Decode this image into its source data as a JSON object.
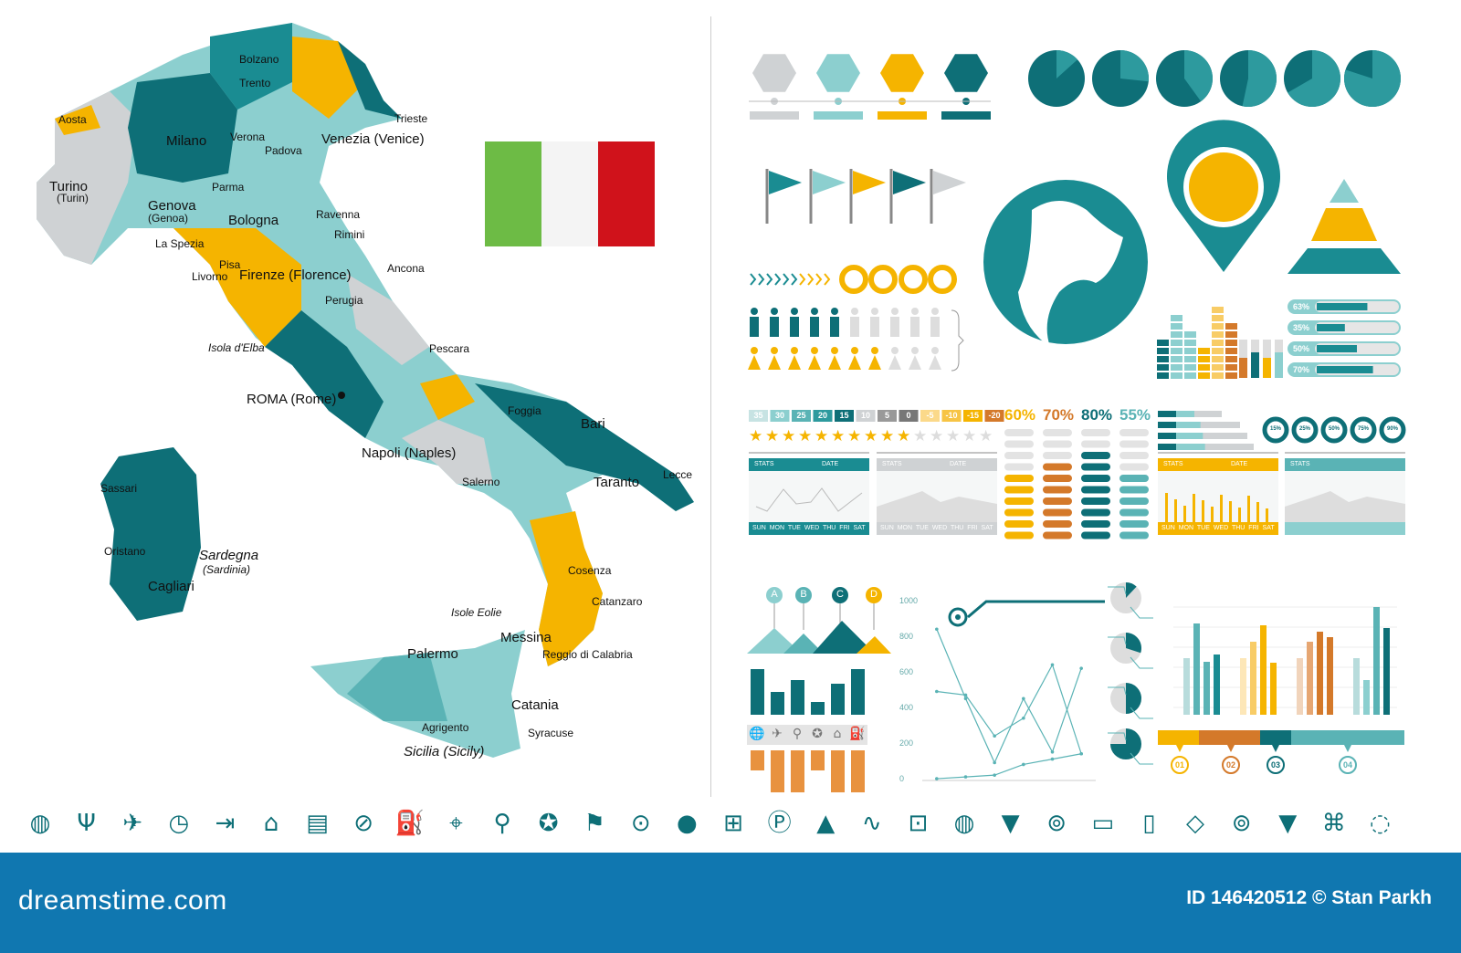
{
  "colors": {
    "teal": "#1a8c92",
    "dark_teal": "#0e6f77",
    "light_teal": "#8ccfcf",
    "pale_teal": "#b8dcdc",
    "yellow": "#f5b400",
    "orange": "#d4792a",
    "gray": "#cfd2d4",
    "footer": "#1077b0"
  },
  "map": {
    "cities": [
      {
        "name": "Aosta",
        "big": false
      },
      {
        "name": "Bolzano",
        "big": false
      },
      {
        "name": "Trento",
        "big": false
      },
      {
        "name": "Trieste",
        "big": false
      },
      {
        "name": "Milano",
        "big": true
      },
      {
        "name": "Verona",
        "big": false
      },
      {
        "name": "Padova",
        "big": false
      },
      {
        "name": "Venezia (Venice)",
        "big": true
      },
      {
        "name": "Turino",
        "big": true
      },
      {
        "name": "(Turin)",
        "big": false
      },
      {
        "name": "Genova",
        "big": true
      },
      {
        "name": "(Genoa)",
        "big": false
      },
      {
        "name": "Bologna",
        "big": true
      },
      {
        "name": "Parma",
        "big": false
      },
      {
        "name": "Ravenna",
        "big": false
      },
      {
        "name": "Rimini",
        "big": false
      },
      {
        "name": "La Spezia",
        "big": false
      },
      {
        "name": "Livorno",
        "big": false
      },
      {
        "name": "Pisa",
        "big": false
      },
      {
        "name": "Firenze (Florence)",
        "big": true
      },
      {
        "name": "Ancona",
        "big": false
      },
      {
        "name": "Perugia",
        "big": false
      },
      {
        "name": "Pescara",
        "big": false
      },
      {
        "name": "ROMA (Rome)",
        "big": true
      },
      {
        "name": "Foggia",
        "big": false
      },
      {
        "name": "Bari",
        "big": true
      },
      {
        "name": "Napoli (Naples)",
        "big": true
      },
      {
        "name": "Salerno",
        "big": false
      },
      {
        "name": "Taranto",
        "big": true
      },
      {
        "name": "Lecce",
        "big": false
      },
      {
        "name": "Cosenza",
        "big": false
      },
      {
        "name": "Catanzaro",
        "big": false
      },
      {
        "name": "Reggio di Calabria",
        "big": false
      },
      {
        "name": "Messina",
        "big": true
      },
      {
        "name": "Palermo",
        "big": true
      },
      {
        "name": "Catania",
        "big": true
      },
      {
        "name": "Agrigento",
        "big": false
      },
      {
        "name": "Syracuse",
        "big": false
      },
      {
        "name": "Sicilia (Sicily)",
        "big": true
      },
      {
        "name": "Isole Eolie",
        "big": false
      },
      {
        "name": "Sassari",
        "big": false
      },
      {
        "name": "Oristano",
        "big": false
      },
      {
        "name": "Cagliari",
        "big": true
      },
      {
        "name": "Sardegna",
        "big": true
      },
      {
        "name": "(Sardinia)",
        "big": false
      },
      {
        "name": "Isola d'Elba",
        "big": false
      }
    ],
    "flag": {
      "colors": [
        "#6dbb45",
        "#f4f4f4",
        "#d0121b"
      ]
    }
  },
  "infographic": {
    "scale_labels": [
      "35",
      "30",
      "25",
      "20",
      "15",
      "10",
      "5",
      "0",
      "-5",
      "-10",
      "-15",
      "-20"
    ],
    "stars": {
      "filled": 10,
      "total": 15
    },
    "percent_headers": [
      "60%",
      "70%",
      "80%",
      "55%"
    ],
    "progress_bars": [
      {
        "label": "63%",
        "value": 63
      },
      {
        "label": "35%",
        "value": 35
      },
      {
        "label": "50%",
        "value": 50
      },
      {
        "label": "70%",
        "value": 70
      }
    ],
    "rings": [
      {
        "label": "15%",
        "value": 15
      },
      {
        "label": "25%",
        "value": 25
      },
      {
        "label": "50%",
        "value": 50
      },
      {
        "label": "75%",
        "value": 75
      },
      {
        "label": "90%",
        "value": 90
      }
    ],
    "stats_panels": [
      {
        "stats": "STATS",
        "date": "DATE",
        "days": "SUN MON TUE WED THU FRI SAT",
        "color": "#1a8c92"
      },
      {
        "stats": "STATS",
        "date": "DATE",
        "days": "SUN MON TUE WED THU FRI SAT",
        "color": "#cfd2d4"
      },
      {
        "stats": "STATS",
        "date": "DATE",
        "days": "SUN MON TUE WED THU FRI SAT",
        "color": "#f5b400"
      },
      {
        "stats": "STATS",
        "date": "",
        "days": "",
        "color": "#5ab3b5"
      }
    ],
    "abcd": [
      "A",
      "B",
      "C",
      "D"
    ],
    "markers": [
      "01",
      "02",
      "03",
      "04"
    ],
    "people_filled": {
      "men": 5,
      "women": 7,
      "total": 10
    }
  },
  "chart_data": {
    "type": "line",
    "ylim": [
      0,
      1000
    ],
    "yticks": [
      "0",
      "200",
      "400",
      "600",
      "800",
      "1000"
    ],
    "x": [
      1,
      2,
      3,
      4,
      5,
      6
    ],
    "series": [
      {
        "values": [
          850,
          460,
          100,
          460,
          160,
          630
        ]
      },
      {
        "values": [
          500,
          480,
          250,
          350,
          650,
          150
        ]
      },
      {
        "values": [
          10,
          20,
          30,
          90,
          120,
          150
        ]
      }
    ]
  },
  "footer": {
    "logo": "dreamstime.com",
    "credit": "ID 146420512 © Stan Parkh"
  },
  "icon_row": [
    "globe",
    "fragile-glass",
    "airplane",
    "clock",
    "signpost",
    "home",
    "map",
    "compass",
    "fuel",
    "target",
    "search",
    "star-pin",
    "flag",
    "location-pin",
    "location-pin-filled",
    "map-search",
    "parking",
    "road",
    "route",
    "camera",
    "globe",
    "speech-pin",
    "pin",
    "card",
    "phone-pin",
    "map-route",
    "pin",
    "chat-marker",
    "map-location",
    "pin-outline"
  ]
}
